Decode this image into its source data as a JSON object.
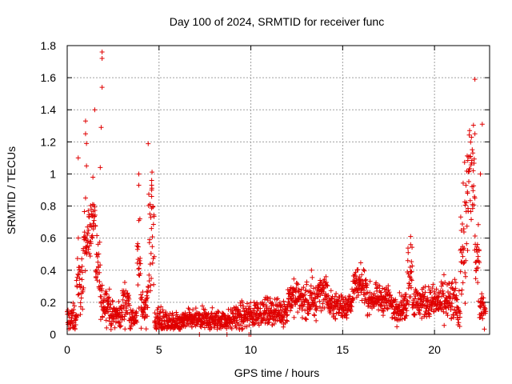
{
  "chart_data": {
    "type": "scatter",
    "title": "Day 100 of 2024, SRMTID for receiver func",
    "xlabel": "GPS time / hours",
    "ylabel": "SRMTID / TECUs",
    "xlim": [
      0,
      23
    ],
    "ylim": [
      0,
      1.8
    ],
    "grid": true,
    "marker": "+",
    "color": "#e00000",
    "xticks": [
      0,
      5,
      10,
      15,
      20
    ],
    "xtick_labels": [
      "0",
      "5",
      "10",
      "15",
      "20"
    ],
    "yticks": [
      0,
      0.2,
      0.4,
      0.6,
      0.8,
      1.0,
      1.2,
      1.4,
      1.6,
      1.8
    ],
    "ytick_labels": [
      "0",
      "0.2",
      "0.4",
      "0.6",
      "0.8",
      "1",
      "1.2",
      "1.4",
      "1.6",
      "1.8"
    ],
    "segments": [
      [
        0.0,
        0.5,
        0.09,
        0.05
      ],
      [
        0.5,
        0.9,
        0.3,
        0.12
      ],
      [
        0.9,
        1.3,
        0.62,
        0.1
      ],
      [
        1.3,
        1.55,
        0.72,
        0.06
      ],
      [
        1.55,
        1.8,
        0.38,
        0.1
      ],
      [
        1.8,
        2.3,
        0.2,
        0.05
      ],
      [
        2.3,
        3.0,
        0.12,
        0.04
      ],
      [
        3.0,
        3.4,
        0.2,
        0.06
      ],
      [
        3.4,
        3.8,
        0.1,
        0.03
      ],
      [
        3.8,
        4.0,
        0.4,
        0.12
      ],
      [
        4.0,
        4.4,
        0.18,
        0.06
      ],
      [
        4.4,
        4.75,
        0.62,
        0.22
      ],
      [
        4.75,
        5.5,
        0.08,
        0.04
      ],
      [
        5.5,
        6.3,
        0.07,
        0.03
      ],
      [
        6.3,
        9.0,
        0.09,
        0.03
      ],
      [
        9.0,
        9.8,
        0.11,
        0.04
      ],
      [
        9.8,
        10.2,
        0.12,
        0.04
      ],
      [
        10.2,
        12.0,
        0.14,
        0.04
      ],
      [
        12.0,
        12.8,
        0.23,
        0.05
      ],
      [
        12.8,
        13.6,
        0.2,
        0.06
      ],
      [
        13.6,
        14.2,
        0.27,
        0.05
      ],
      [
        14.2,
        15.5,
        0.18,
        0.04
      ],
      [
        15.5,
        16.3,
        0.3,
        0.05
      ],
      [
        16.3,
        17.6,
        0.22,
        0.04
      ],
      [
        17.6,
        18.5,
        0.17,
        0.04
      ],
      [
        18.5,
        18.8,
        0.4,
        0.12
      ],
      [
        18.8,
        20.3,
        0.2,
        0.05
      ],
      [
        20.3,
        21.2,
        0.2,
        0.07
      ],
      [
        21.2,
        21.4,
        0.14,
        0.05
      ],
      [
        21.4,
        21.75,
        0.6,
        0.22
      ],
      [
        21.75,
        22.2,
        0.95,
        0.22
      ],
      [
        22.2,
        22.45,
        0.45,
        0.12
      ],
      [
        22.45,
        22.8,
        0.16,
        0.04
      ]
    ],
    "spikes": [
      [
        1.9,
        1.76
      ],
      [
        1.9,
        1.72
      ],
      [
        1.9,
        1.54
      ],
      [
        1.85,
        1.29
      ],
      [
        1.5,
        1.4
      ],
      [
        1.0,
        1.33
      ],
      [
        1.0,
        1.25
      ],
      [
        1.05,
        1.19
      ],
      [
        0.6,
        1.1
      ],
      [
        1.05,
        1.05
      ],
      [
        1.8,
        1.04
      ],
      [
        1.4,
        0.98
      ],
      [
        1.0,
        0.85
      ],
      [
        3.9,
        1.0
      ],
      [
        3.9,
        0.93
      ],
      [
        4.6,
        0.96
      ],
      [
        4.6,
        0.93
      ],
      [
        4.6,
        0.9
      ],
      [
        4.6,
        0.86
      ],
      [
        3.9,
        0.71
      ],
      [
        22.2,
        1.59
      ],
      [
        22.6,
        1.31
      ],
      [
        22.5,
        1.0
      ],
      [
        22.2,
        1.25
      ],
      [
        21.8,
        0.88
      ],
      [
        18.7,
        0.61
      ],
      [
        18.7,
        0.56
      ],
      [
        13.3,
        0.4
      ],
      [
        8.7,
        0.0
      ],
      [
        7.2,
        0.0
      ],
      [
        9.9,
        0.0
      ],
      [
        10.0,
        0.0
      ]
    ]
  }
}
